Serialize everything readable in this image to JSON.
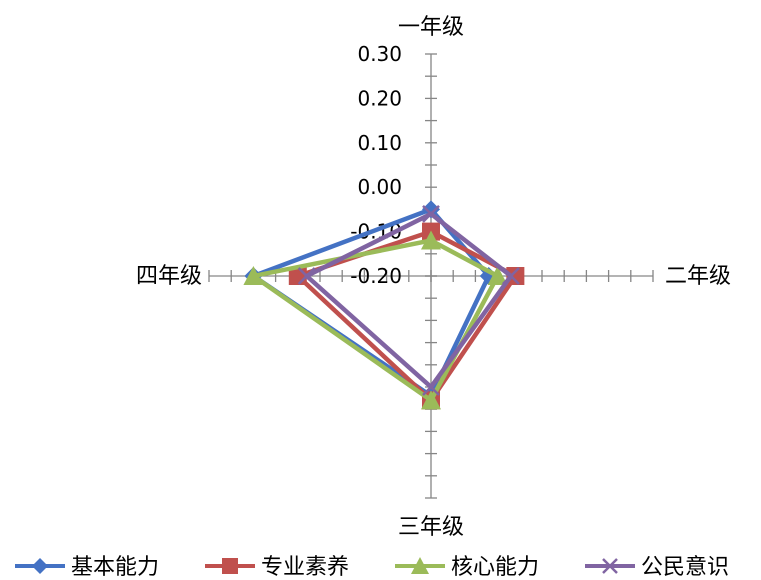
{
  "chart_data": {
    "type": "radar",
    "categories": [
      "一年级",
      "二年级",
      "三年级",
      "四年级"
    ],
    "r_ticks": [
      "0.30",
      "0.20",
      "0.10",
      "0.00",
      "-0.10",
      "-0.20"
    ],
    "rlim": [
      -0.2,
      0.3
    ],
    "grid": false,
    "legend_position": "bottom",
    "series": [
      {
        "name": "基本能力",
        "values": [
          -0.05,
          -0.07,
          0.07,
          0.2
        ],
        "color": "#4472C4",
        "marker": "diamond"
      },
      {
        "name": "专业素养",
        "values": [
          -0.1,
          -0.01,
          0.08,
          0.1
        ],
        "color": "#C0504D",
        "marker": "square"
      },
      {
        "name": "核心能力",
        "values": [
          -0.12,
          -0.05,
          0.08,
          0.2
        ],
        "color": "#9BBB59",
        "marker": "triangle"
      },
      {
        "name": "公民意识",
        "values": [
          -0.06,
          -0.02,
          0.05,
          0.08
        ],
        "color": "#8064A2",
        "marker": "x"
      }
    ]
  }
}
